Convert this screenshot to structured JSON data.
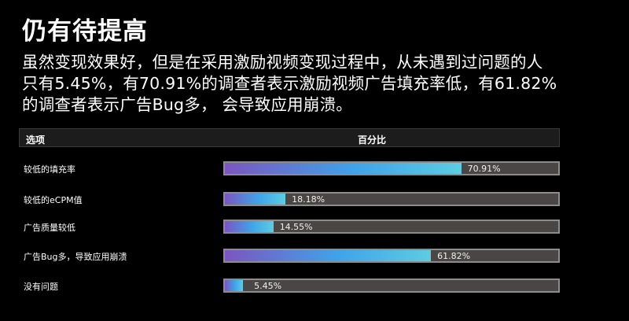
{
  "title": "仍有待提高",
  "description": [
    "虽然变现效果好，但是在采用激励视频变现过程中，从未遇到过问题的人",
    "只有5.45%，有70.91%的调查者表示激励视频广告填充率低，有61.82%",
    "的调查者表示广告Bug多， 会导致应用崩溃。"
  ],
  "table": {
    "header_option": "选项",
    "header_percent": "百分比"
  },
  "colors": {
    "background": "#000000",
    "bar_gradient_start": "#7c55c0",
    "bar_gradient_mid": "#3ea4ea",
    "bar_gradient_end": "#5ccde2",
    "track": "#4a4646"
  },
  "chart_data": {
    "type": "bar",
    "orientation": "horizontal",
    "categories": [
      "较低的填充率",
      "较低的eCPM值",
      "广告质量较低",
      "广告Bug多，导致应用崩溃",
      "没有问题"
    ],
    "values": [
      70.91,
      18.18,
      14.55,
      61.82,
      5.45
    ],
    "value_labels": [
      "70.91%",
      "18.18%",
      "14.55%",
      "61.82%",
      "5.45%"
    ],
    "unit": "%",
    "xlim": [
      0,
      100
    ],
    "title": "",
    "xlabel": "",
    "ylabel": ""
  }
}
